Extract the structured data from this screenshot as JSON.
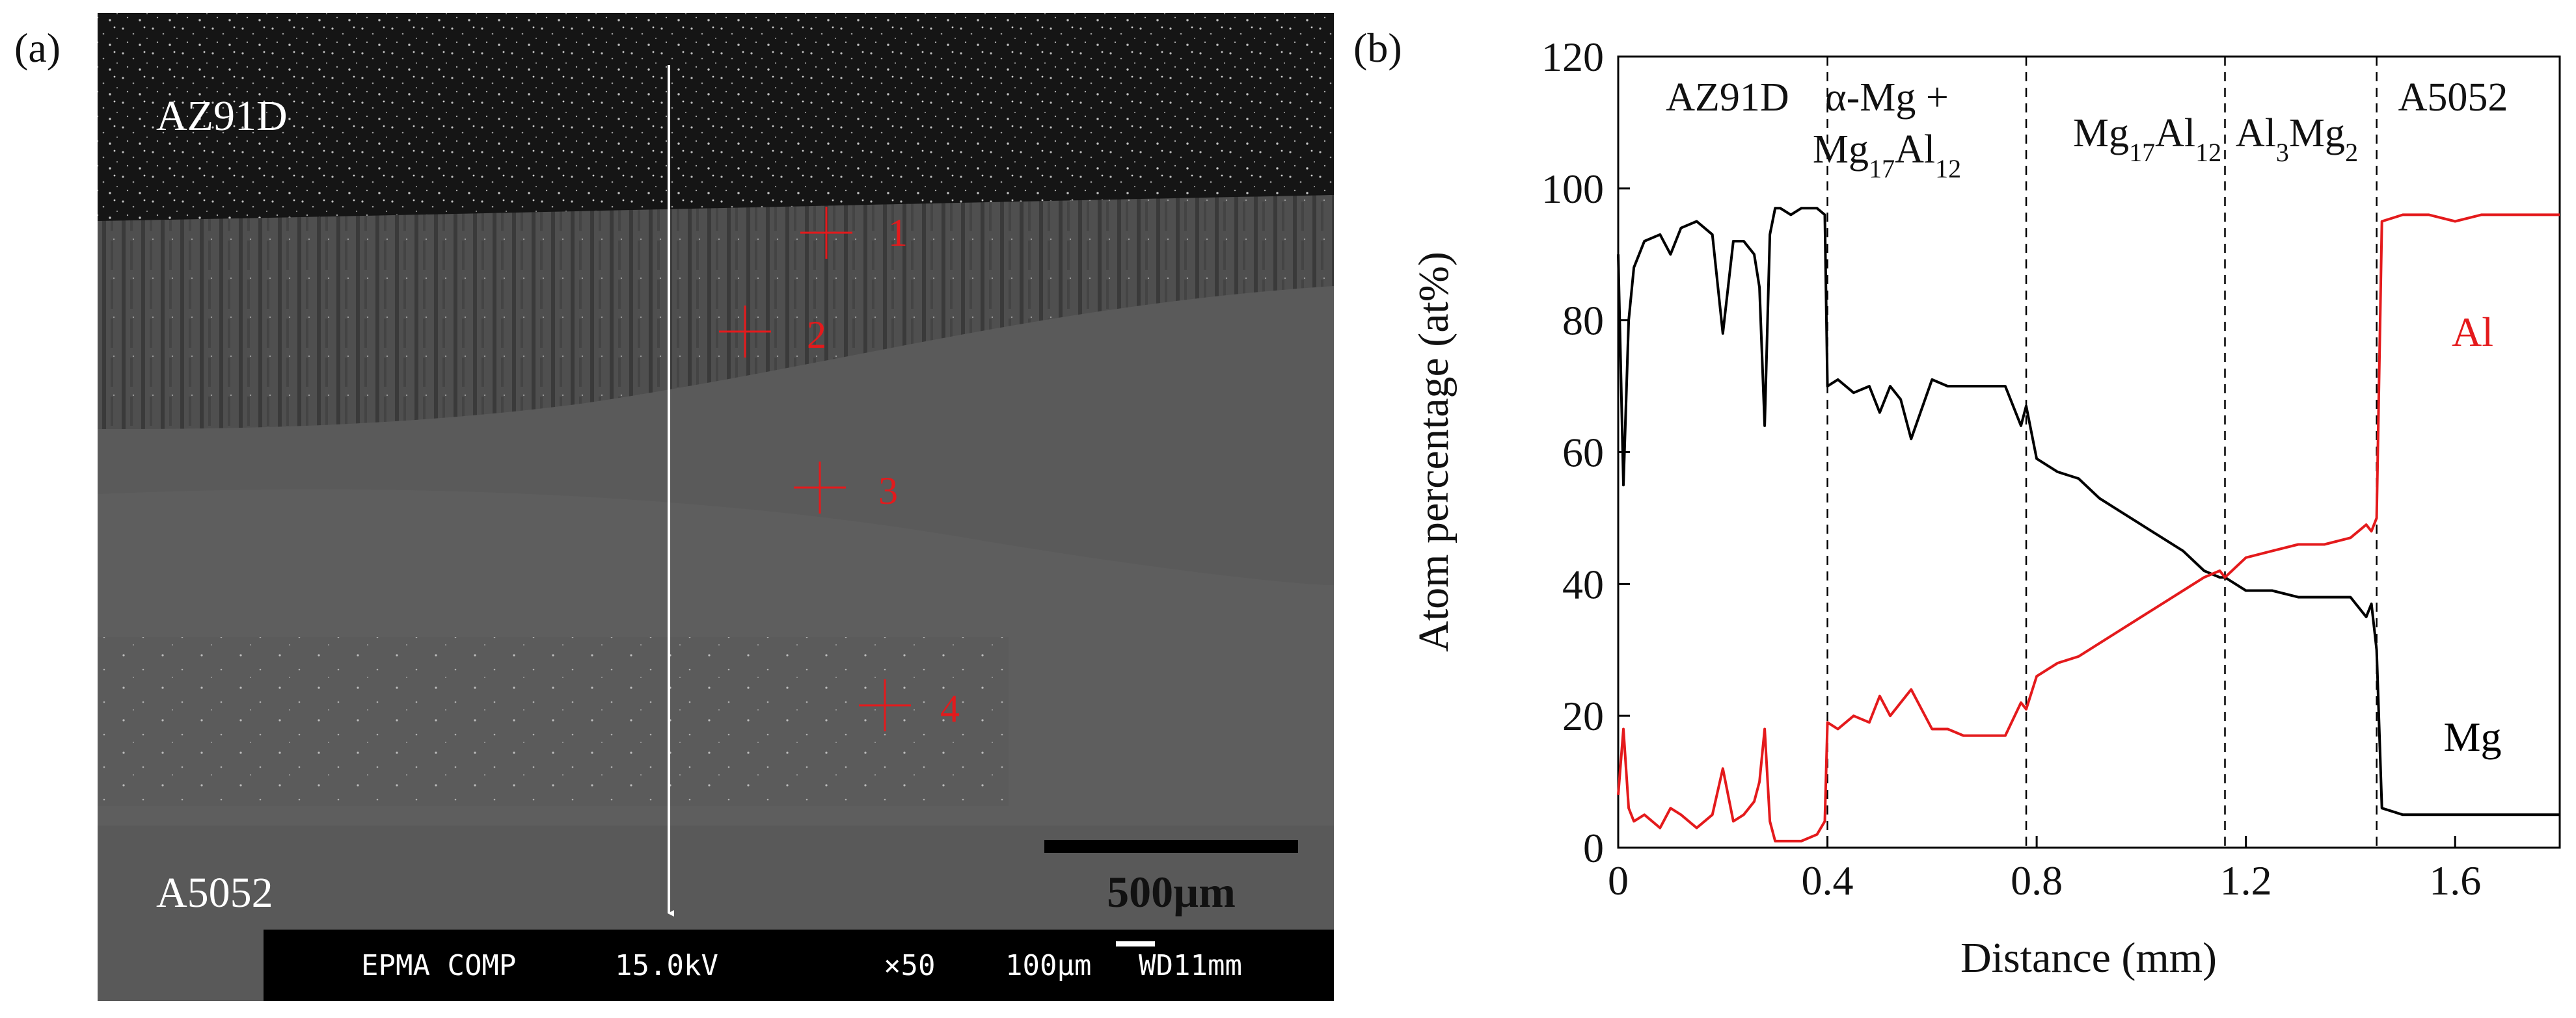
{
  "panel_a": {
    "panel_label": "(a)",
    "top_region_label": "AZ91D",
    "bottom_region_label": "A5052",
    "markers": [
      "1",
      "2",
      "3",
      "4"
    ],
    "scale_bar_label": "500µm",
    "info_bar": {
      "mode": "EPMA COMP",
      "voltage": "15.0kV",
      "magnification": "×50",
      "scale": "100µm",
      "working_distance": "WD11mm"
    }
  },
  "panel_b": {
    "panel_label": "(b)",
    "phases": [
      {
        "parts": [
          {
            "t": "AZ91D"
          }
        ]
      },
      {
        "parts": [
          {
            "t": "α-Mg +"
          }
        ]
      },
      {
        "parts": [
          {
            "t": "Mg"
          },
          {
            "t": "17",
            "sub": true
          },
          {
            "t": "Al"
          },
          {
            "t": "12",
            "sub": true
          }
        ]
      },
      {
        "parts": [
          {
            "t": "Mg"
          },
          {
            "t": "17",
            "sub": true
          },
          {
            "t": "Al"
          },
          {
            "t": "12",
            "sub": true
          }
        ]
      },
      {
        "parts": [
          {
            "t": "Al"
          },
          {
            "t": "3",
            "sub": true
          },
          {
            "t": "Mg"
          },
          {
            "t": "2",
            "sub": true
          }
        ]
      },
      {
        "parts": [
          {
            "t": "A5052"
          }
        ]
      }
    ],
    "series_labels": {
      "al": "Al",
      "mg": "Mg"
    }
  },
  "colors": {
    "al_series": "#e41a1c",
    "mg_series": "#000000",
    "sem_dark": "#141414",
    "sem_mid": "#5a5a5a",
    "marker": "#e41a1c"
  },
  "chart_data": {
    "type": "line",
    "title": "",
    "xlabel": "Distance (mm)",
    "ylabel": "Atom percentage (at%)",
    "xlim": [
      0,
      1.8
    ],
    "ylim": [
      0,
      120
    ],
    "xticks": [
      0,
      0.4,
      0.8,
      1.2,
      1.6
    ],
    "xtick_labels": [
      "0",
      "0.4",
      "0.8",
      "1.2",
      "1.6"
    ],
    "yticks": [
      0,
      20,
      40,
      60,
      80,
      100,
      120
    ],
    "ytick_labels": [
      "0",
      "20",
      "40",
      "60",
      "80",
      "100",
      "120"
    ],
    "phase_boundaries": [
      0.4,
      0.78,
      1.16,
      1.45
    ],
    "series": [
      {
        "name": "Mg",
        "x": [
          0,
          0.01,
          0.02,
          0.03,
          0.05,
          0.08,
          0.1,
          0.12,
          0.15,
          0.18,
          0.2,
          0.22,
          0.24,
          0.26,
          0.27,
          0.28,
          0.29,
          0.3,
          0.31,
          0.33,
          0.35,
          0.38,
          0.395,
          0.4,
          0.42,
          0.45,
          0.48,
          0.5,
          0.52,
          0.54,
          0.56,
          0.6,
          0.63,
          0.66,
          0.7,
          0.74,
          0.77,
          0.78,
          0.8,
          0.84,
          0.88,
          0.92,
          0.96,
          1.0,
          1.04,
          1.08,
          1.12,
          1.15,
          1.16,
          1.2,
          1.25,
          1.3,
          1.35,
          1.4,
          1.43,
          1.44,
          1.45,
          1.46,
          1.5,
          1.55,
          1.6,
          1.65,
          1.7,
          1.75,
          1.8
        ],
        "y": [
          90,
          55,
          80,
          88,
          92,
          93,
          90,
          94,
          95,
          93,
          78,
          92,
          92,
          90,
          85,
          64,
          93,
          97,
          97,
          96,
          97,
          97,
          96,
          70,
          71,
          69,
          70,
          66,
          70,
          68,
          62,
          71,
          70,
          70,
          70,
          70,
          64,
          67,
          59,
          57,
          56,
          53,
          51,
          49,
          47,
          45,
          42,
          41,
          41,
          39,
          39,
          38,
          38,
          38,
          35,
          37,
          30,
          6,
          5,
          5,
          5,
          5,
          5,
          5,
          5
        ]
      },
      {
        "name": "Al",
        "x": [
          0,
          0.01,
          0.02,
          0.03,
          0.05,
          0.08,
          0.1,
          0.12,
          0.15,
          0.18,
          0.2,
          0.22,
          0.24,
          0.26,
          0.27,
          0.28,
          0.29,
          0.3,
          0.31,
          0.33,
          0.35,
          0.38,
          0.395,
          0.4,
          0.42,
          0.45,
          0.48,
          0.5,
          0.52,
          0.54,
          0.56,
          0.6,
          0.63,
          0.66,
          0.7,
          0.74,
          0.77,
          0.78,
          0.8,
          0.84,
          0.88,
          0.92,
          0.96,
          1.0,
          1.04,
          1.08,
          1.12,
          1.15,
          1.16,
          1.2,
          1.25,
          1.3,
          1.35,
          1.4,
          1.43,
          1.44,
          1.45,
          1.46,
          1.5,
          1.55,
          1.6,
          1.65,
          1.7,
          1.75,
          1.8
        ],
        "y": [
          8,
          18,
          6,
          4,
          5,
          3,
          6,
          5,
          3,
          5,
          12,
          4,
          5,
          7,
          10,
          18,
          4,
          1,
          1,
          1,
          1,
          2,
          4,
          19,
          18,
          20,
          19,
          23,
          20,
          22,
          24,
          18,
          18,
          17,
          17,
          17,
          22,
          21,
          26,
          28,
          29,
          31,
          33,
          35,
          37,
          39,
          41,
          42,
          41,
          44,
          45,
          46,
          46,
          47,
          49,
          48,
          50,
          95,
          96,
          96,
          95,
          96,
          96,
          96,
          96
        ]
      }
    ]
  }
}
